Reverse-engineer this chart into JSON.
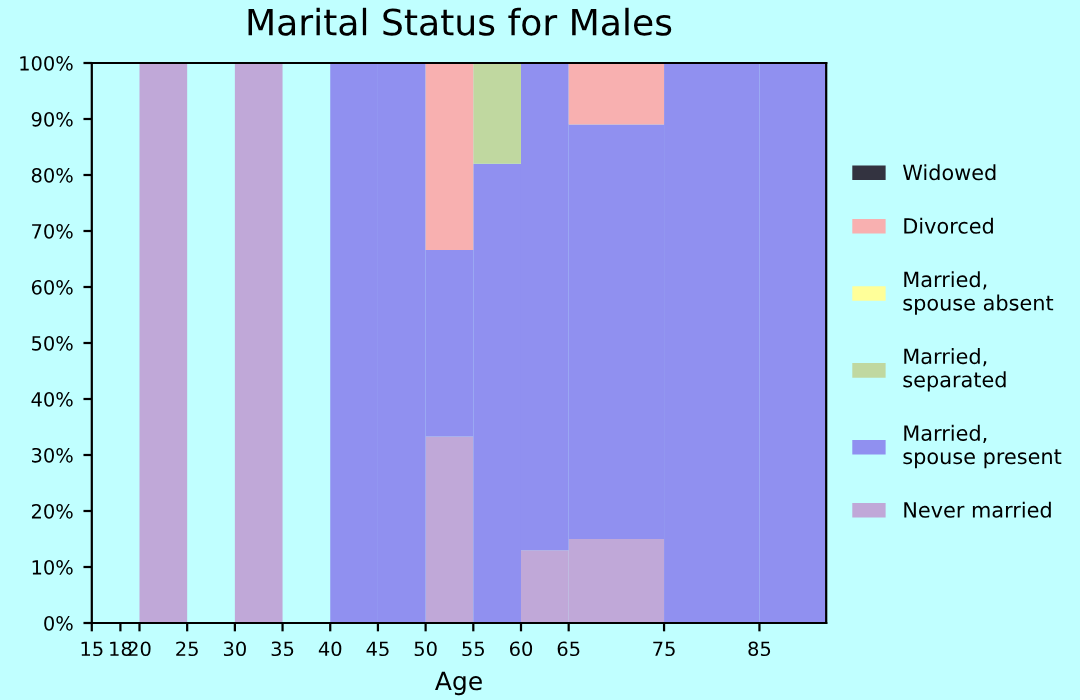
{
  "chart_data": {
    "type": "bar",
    "title": "Marital Status for Males",
    "xlabel": "Age",
    "stacked": true,
    "x": [
      22.5,
      32.5,
      42.5,
      47.5,
      52.5,
      57.5,
      62.5,
      70,
      80,
      88.5
    ],
    "xlim": [
      15,
      92
    ],
    "xticks": [
      15,
      18,
      20,
      25,
      30,
      35,
      40,
      45,
      50,
      55,
      60,
      65,
      75,
      85
    ],
    "ylim": [
      0,
      100
    ],
    "yticks": [
      {
        "value": 0,
        "label": "0%"
      },
      {
        "value": 10,
        "label": "10%"
      },
      {
        "value": 20,
        "label": "20%"
      },
      {
        "value": 30,
        "label": "30%"
      },
      {
        "value": 40,
        "label": "40%"
      },
      {
        "value": 50,
        "label": "50%"
      },
      {
        "value": 60,
        "label": "60%"
      },
      {
        "value": 70,
        "label": "70%"
      },
      {
        "value": 80,
        "label": "80%"
      },
      {
        "value": 90,
        "label": "90%"
      },
      {
        "value": 100,
        "label": "100%"
      }
    ],
    "grid": false,
    "legend": "right",
    "series": [
      {
        "name": "Never married",
        "color": "#c0a8d8",
        "values": [
          100,
          100,
          0,
          0,
          33.3,
          0,
          13,
          15,
          0,
          0
        ]
      },
      {
        "name": "Married,\nspouse present",
        "color": "#9090f0",
        "values": [
          0,
          0,
          100,
          100,
          33.3,
          82,
          87,
          74,
          100,
          100
        ]
      },
      {
        "name": "Married,\nseparated",
        "color": "#c0d8a0",
        "values": [
          0,
          0,
          0,
          0,
          0,
          18,
          0,
          0,
          0,
          0
        ]
      },
      {
        "name": "Married,\nspouse absent",
        "color": "#ffff99",
        "values": [
          0,
          0,
          0,
          0,
          0,
          0,
          0,
          0,
          0,
          0
        ]
      },
      {
        "name": "Divorced",
        "color": "#f8b0b0",
        "values": [
          0,
          0,
          0,
          0,
          33.3,
          0,
          0,
          11,
          0,
          0
        ]
      },
      {
        "name": "Widowed",
        "color": "#333340",
        "values": [
          0,
          0,
          0,
          0,
          0,
          0,
          0,
          0,
          0,
          0
        ]
      }
    ]
  }
}
